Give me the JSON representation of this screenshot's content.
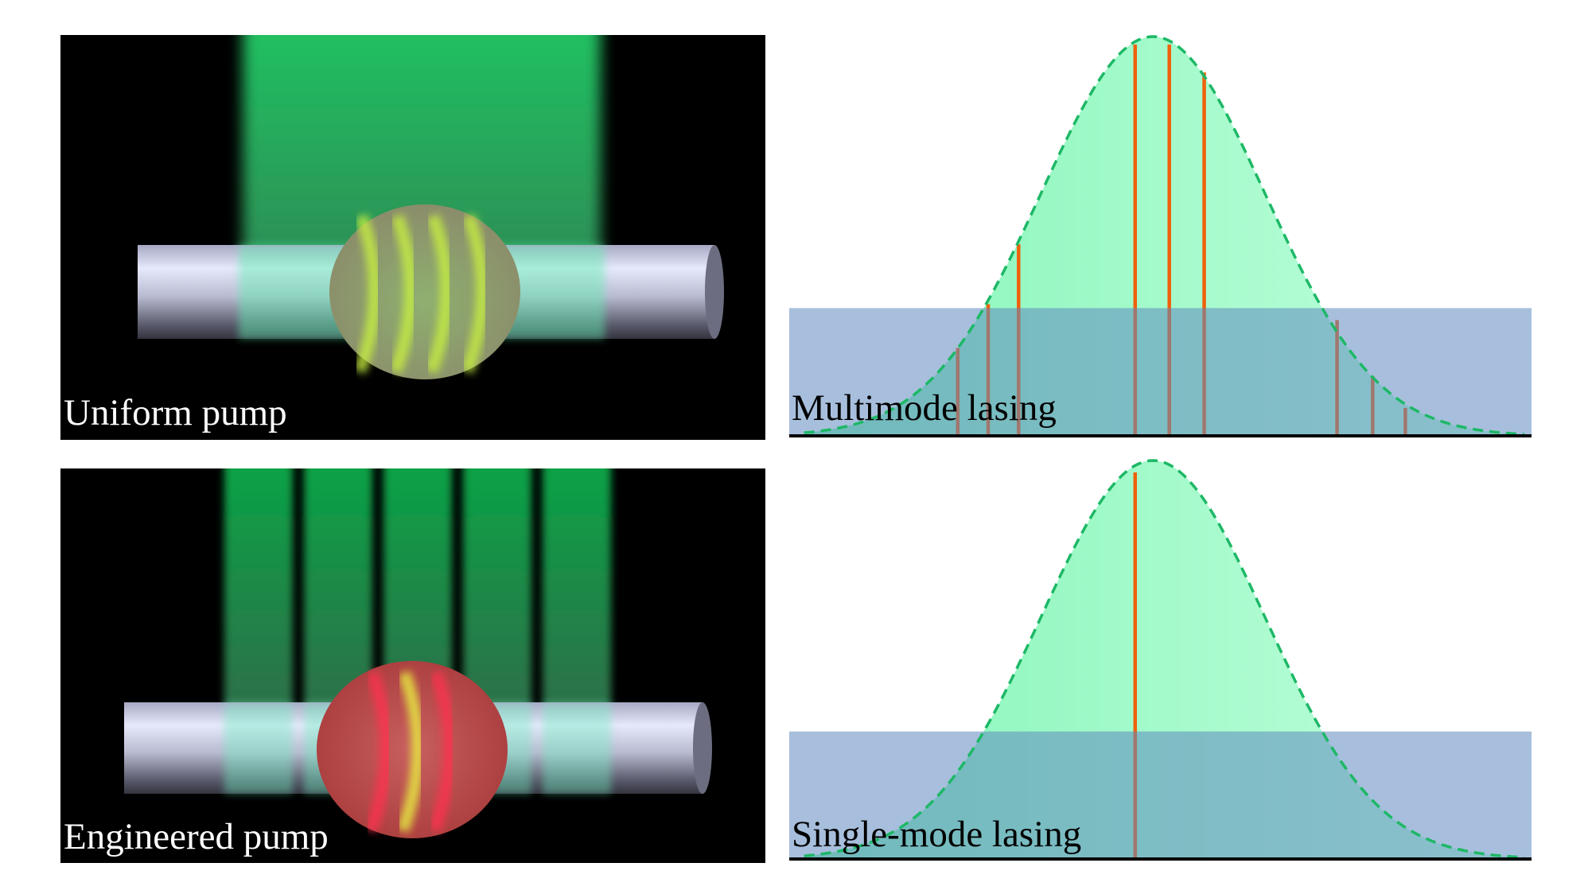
{
  "panels": [
    {
      "label": "Uniform pump",
      "pump": "uniform",
      "beam_color": "#1fbf62"
    },
    {
      "label": "Engineered pump",
      "pump": "engineered",
      "stripes": 5,
      "beam_color": "#0aa548"
    }
  ],
  "chart_data": [
    {
      "type": "line",
      "label": "Multimode lasing",
      "gain_curve": {
        "shape": "gaussian",
        "center": 49.0,
        "sigma": 15.1,
        "peak": 1.0
      },
      "threshold": 0.32,
      "modes": [
        {
          "x": 22.7,
          "amplitude": 0.22
        },
        {
          "x": 26.8,
          "amplitude": 0.33
        },
        {
          "x": 30.9,
          "amplitude": 0.48
        },
        {
          "x": 46.6,
          "amplitude": 0.98
        },
        {
          "x": 51.2,
          "amplitude": 0.98
        },
        {
          "x": 55.9,
          "amplitude": 0.91
        },
        {
          "x": 73.8,
          "amplitude": 0.29
        },
        {
          "x": 78.6,
          "amplitude": 0.15
        },
        {
          "x": 83.0,
          "amplitude": 0.07
        }
      ],
      "xlim": [
        0,
        100
      ],
      "ylim": [
        0,
        1.0
      ]
    },
    {
      "type": "line",
      "label": "Single-mode lasing",
      "gain_curve": {
        "shape": "gaussian",
        "center": 49.0,
        "sigma": 15.1,
        "peak": 1.0
      },
      "threshold": 0.32,
      "modes": [
        {
          "x": 46.6,
          "amplitude": 0.97
        }
      ],
      "xlim": [
        0,
        100
      ],
      "ylim": [
        0,
        1.0
      ]
    }
  ],
  "colors": {
    "gain_fill_left": "#8cf7bd",
    "gain_fill_right": "#b8ffd8",
    "gain_stroke": "#1db866",
    "mode_line": "#f0600c",
    "loss_band": "#5f8bc0",
    "baseline": "#000000"
  }
}
